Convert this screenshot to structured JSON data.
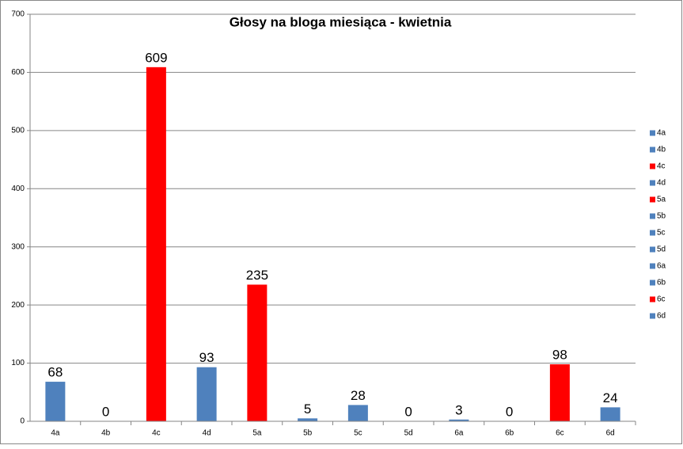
{
  "chart_data": {
    "type": "bar",
    "title": "Głosy na bloga miesiąca - kwietnia",
    "categories": [
      "4a",
      "4b",
      "4c",
      "4d",
      "5a",
      "5b",
      "5c",
      "5d",
      "6a",
      "6b",
      "6c",
      "6d"
    ],
    "values": [
      68,
      0,
      609,
      93,
      235,
      5,
      28,
      0,
      3,
      0,
      98,
      24
    ],
    "colors": [
      "#4f81bd",
      "#4f81bd",
      "#ff0000",
      "#4f81bd",
      "#ff0000",
      "#4f81bd",
      "#4f81bd",
      "#4f81bd",
      "#4f81bd",
      "#4f81bd",
      "#ff0000",
      "#4f81bd"
    ],
    "ylim": [
      0,
      700
    ],
    "yticks": [
      0,
      100,
      200,
      300,
      400,
      500,
      600,
      700
    ],
    "grid": true,
    "legend": "right",
    "data_labels": true
  }
}
